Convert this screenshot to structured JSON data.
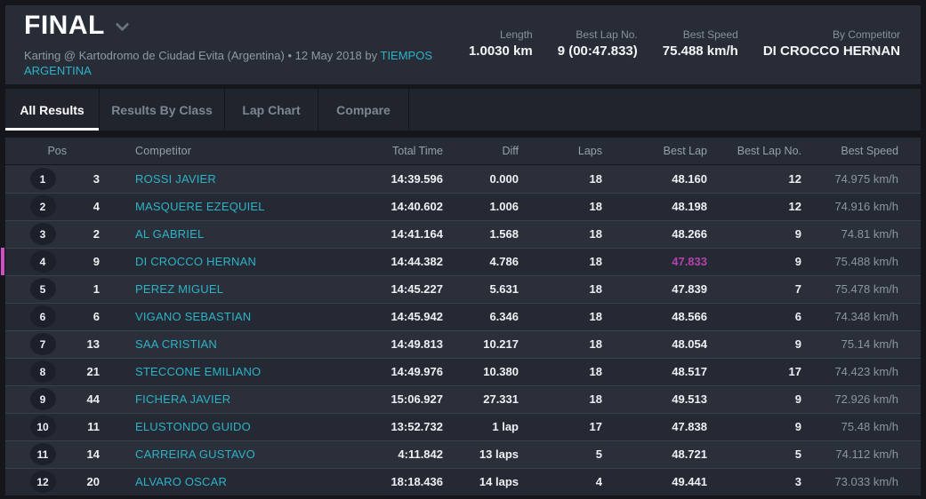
{
  "header": {
    "title": "FINAL",
    "subtitle_prefix": "Karting @ Kartodromo de Ciudad Evita (Argentina) • 12 May 2018 by ",
    "subtitle_link": "TIEMPOS ARGENTINA",
    "stats": [
      {
        "label": "Length",
        "value": "1.0030 km"
      },
      {
        "label": "Best Lap No.",
        "value": "9 (00:47.833)"
      },
      {
        "label": "Best Speed",
        "value": "75.488 km/h"
      },
      {
        "label": "By Competitor",
        "value": "DI CROCCO HERNAN"
      }
    ]
  },
  "tabs": [
    {
      "label": "All Results",
      "active": true
    },
    {
      "label": "Results By Class",
      "active": false
    },
    {
      "label": "Lap Chart",
      "active": false
    },
    {
      "label": "Compare",
      "active": false
    }
  ],
  "table": {
    "columns": [
      "Pos",
      "Competitor",
      "Total Time",
      "Diff",
      "Laps",
      "Best Lap",
      "Best Lap No.",
      "Best Speed"
    ],
    "rows": [
      {
        "pos": "1",
        "no": "3",
        "competitor": "ROSSI JAVIER",
        "total_time": "14:39.596",
        "diff": "0.000",
        "laps": "18",
        "best_lap": "48.160",
        "best_lap_no": "12",
        "best_speed": "74.975 km/h",
        "highlight": false,
        "best_lap_overall": false
      },
      {
        "pos": "2",
        "no": "4",
        "competitor": "MASQUERE EZEQUIEL",
        "total_time": "14:40.602",
        "diff": "1.006",
        "laps": "18",
        "best_lap": "48.198",
        "best_lap_no": "12",
        "best_speed": "74.916 km/h",
        "highlight": false,
        "best_lap_overall": false
      },
      {
        "pos": "3",
        "no": "2",
        "competitor": "AL GABRIEL",
        "total_time": "14:41.164",
        "diff": "1.568",
        "laps": "18",
        "best_lap": "48.266",
        "best_lap_no": "9",
        "best_speed": "74.81 km/h",
        "highlight": false,
        "best_lap_overall": false
      },
      {
        "pos": "4",
        "no": "9",
        "competitor": "DI CROCCO HERNAN",
        "total_time": "14:44.382",
        "diff": "4.786",
        "laps": "18",
        "best_lap": "47.833",
        "best_lap_no": "9",
        "best_speed": "75.488 km/h",
        "highlight": true,
        "best_lap_overall": true
      },
      {
        "pos": "5",
        "no": "1",
        "competitor": "PEREZ MIGUEL",
        "total_time": "14:45.227",
        "diff": "5.631",
        "laps": "18",
        "best_lap": "47.839",
        "best_lap_no": "7",
        "best_speed": "75.478 km/h",
        "highlight": false,
        "best_lap_overall": false
      },
      {
        "pos": "6",
        "no": "6",
        "competitor": "VIGANO SEBASTIAN",
        "total_time": "14:45.942",
        "diff": "6.346",
        "laps": "18",
        "best_lap": "48.566",
        "best_lap_no": "6",
        "best_speed": "74.348 km/h",
        "highlight": false,
        "best_lap_overall": false
      },
      {
        "pos": "7",
        "no": "13",
        "competitor": "SAA CRISTIAN",
        "total_time": "14:49.813",
        "diff": "10.217",
        "laps": "18",
        "best_lap": "48.054",
        "best_lap_no": "9",
        "best_speed": "75.14 km/h",
        "highlight": false,
        "best_lap_overall": false
      },
      {
        "pos": "8",
        "no": "21",
        "competitor": "STECCONE EMILIANO",
        "total_time": "14:49.976",
        "diff": "10.380",
        "laps": "18",
        "best_lap": "48.517",
        "best_lap_no": "17",
        "best_speed": "74.423 km/h",
        "highlight": false,
        "best_lap_overall": false
      },
      {
        "pos": "9",
        "no": "44",
        "competitor": "FICHERA JAVIER",
        "total_time": "15:06.927",
        "diff": "27.331",
        "laps": "18",
        "best_lap": "49.513",
        "best_lap_no": "9",
        "best_speed": "72.926 km/h",
        "highlight": false,
        "best_lap_overall": false
      },
      {
        "pos": "10",
        "no": "11",
        "competitor": "ELUSTONDO GUIDO",
        "total_time": "13:52.732",
        "diff": "1 lap",
        "laps": "17",
        "best_lap": "47.838",
        "best_lap_no": "9",
        "best_speed": "75.48 km/h",
        "highlight": false,
        "best_lap_overall": false
      },
      {
        "pos": "11",
        "no": "14",
        "competitor": "CARREIRA GUSTAVO",
        "total_time": "4:11.842",
        "diff": "13 laps",
        "laps": "5",
        "best_lap": "48.721",
        "best_lap_no": "5",
        "best_speed": "74.112 km/h",
        "highlight": false,
        "best_lap_overall": false
      },
      {
        "pos": "12",
        "no": "20",
        "competitor": "ALVARO OSCAR",
        "total_time": "18:18.436",
        "diff": "14 laps",
        "laps": "4",
        "best_lap": "49.441",
        "best_lap_no": "3",
        "best_speed": "73.033 km/h",
        "highlight": false,
        "best_lap_overall": false
      }
    ]
  },
  "colors": {
    "accent_teal": "#2db3c7",
    "best_lap_magenta": "#b840ae",
    "highlight_bar_pink": "#d04fc4",
    "page_bg": "#14161c",
    "panel_bg": "#272c36"
  }
}
